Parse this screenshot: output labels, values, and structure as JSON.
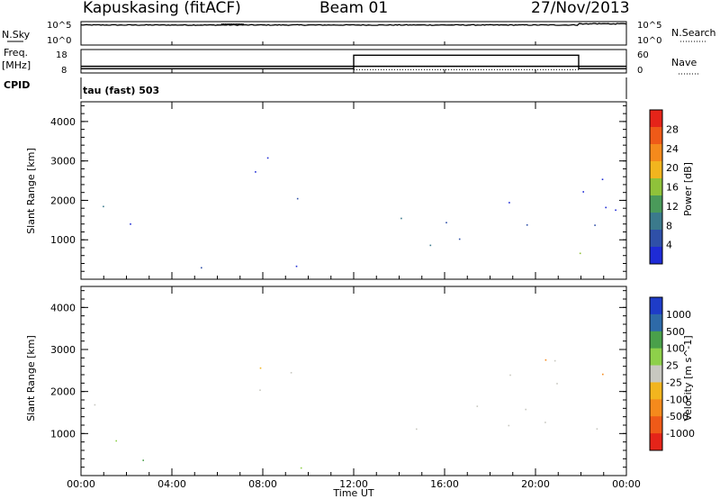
{
  "header": {
    "station": "Kapuskasing (fitACF)",
    "beam": "Beam 01",
    "date": "27/Nov/2013"
  },
  "left_labels": {
    "nsky": "N.Sky",
    "nsky_hi": "10^5",
    "nsky_lo": "10^0",
    "freq": "Freq.",
    "freq_unit": "[MHz]",
    "freq_hi": "18",
    "freq_lo": "8",
    "cpid": "CPID",
    "cpid_value": "tau (fast) 503"
  },
  "right_labels": {
    "nsearch": "N.Search",
    "nsearch_hi": "10^5",
    "nsearch_lo": "10^0",
    "nave": "Nave",
    "nave_hi": "60",
    "nave_lo": "0"
  },
  "chart_data": [
    {
      "type": "heatmap",
      "title": "",
      "xlabel": "Time UT",
      "ylabel": "Slant Range [km]",
      "x_ticks": [
        "00:00",
        "04:00",
        "08:00",
        "12:00",
        "16:00",
        "20:00",
        "00:00"
      ],
      "x_range_hours": [
        0,
        24
      ],
      "y_ticks": [
        "1000",
        "2000",
        "3000",
        "4000"
      ],
      "ylim": [
        0,
        4500
      ],
      "colorbar": {
        "label": "Power [dB]",
        "ticks": [
          "4",
          "8",
          "12",
          "16",
          "20",
          "24",
          "28"
        ],
        "range": [
          0,
          30
        ],
        "colors": [
          "#1e2bd6",
          "#2f50a8",
          "#3b7a8c",
          "#4a9a5a",
          "#8fc23a",
          "#f2b51e",
          "#f58a1c",
          "#ef5a18",
          "#e52419"
        ]
      },
      "echo_regions": [
        {
          "t_start": 0.0,
          "t_end": 1.2,
          "r_low": 1400,
          "r_high": 2700,
          "level": "med"
        },
        {
          "t_start": 1.5,
          "t_end": 2.8,
          "r_low": 600,
          "r_high": 1500,
          "level": "low"
        },
        {
          "t_start": 7.5,
          "t_end": 12.0,
          "r_low": 2000,
          "r_high": 3100,
          "level": "low"
        },
        {
          "t_start": 0.0,
          "t_end": 12.0,
          "r_low": 150,
          "r_high": 400,
          "level": "low"
        },
        {
          "t_start": 13.8,
          "t_end": 24.0,
          "r_low": 800,
          "r_high": 1700,
          "level": "med"
        },
        {
          "t_start": 21.7,
          "t_end": 23.0,
          "r_low": 600,
          "r_high": 1300,
          "level": "high"
        },
        {
          "t_start": 18.0,
          "t_end": 24.0,
          "r_low": 1700,
          "r_high": 3000,
          "level": "low"
        }
      ]
    },
    {
      "type": "heatmap",
      "title": "",
      "xlabel": "Time UT",
      "ylabel": "Slant Range [km]",
      "x_ticks": [
        "00:00",
        "04:00",
        "08:00",
        "12:00",
        "16:00",
        "20:00",
        "00:00"
      ],
      "x_range_hours": [
        0,
        24
      ],
      "y_ticks": [
        "1000",
        "2000",
        "3000",
        "4000"
      ],
      "ylim": [
        0,
        4500
      ],
      "colorbar": {
        "label": "Velocity [m s^-1]",
        "ticks": [
          "1000",
          "500",
          "100",
          "25",
          "-25",
          "-100",
          "-500",
          "-1000"
        ],
        "colors": [
          "#1e3cc8",
          "#2e6aa8",
          "#4aa04a",
          "#8ed04a",
          "#c8c8c0",
          "#f2b51e",
          "#f58a1c",
          "#ef5a18",
          "#e52419"
        ]
      },
      "echo_regions": [
        {
          "t_start": 0.0,
          "t_end": 1.2,
          "r_low": 1400,
          "r_high": 2700,
          "level": "ground"
        },
        {
          "t_start": 1.5,
          "t_end": 2.8,
          "r_low": 600,
          "r_high": 1500,
          "level": "pos"
        },
        {
          "t_start": 7.5,
          "t_end": 12.0,
          "r_low": 2000,
          "r_high": 3100,
          "level": "ground"
        },
        {
          "t_start": 0.0,
          "t_end": 12.0,
          "r_low": 150,
          "r_high": 400,
          "level": "pos"
        },
        {
          "t_start": 13.8,
          "t_end": 24.0,
          "r_low": 800,
          "r_high": 1700,
          "level": "ground"
        },
        {
          "t_start": 18.0,
          "t_end": 24.0,
          "r_low": 1700,
          "r_high": 3000,
          "level": "neg"
        }
      ]
    }
  ],
  "nsky_trace": {
    "level_log": 4.6,
    "burst_start_hours": 6.2,
    "burst_end_hours": 7.2,
    "step_hours": 21.9,
    "step_level_log": 4.9
  },
  "freq_trace": {
    "t_change_hours": 12.0,
    "t_back_hours": 21.9,
    "freq_low": 10.2,
    "freq_high": 11.2,
    "nave_high": 50
  }
}
